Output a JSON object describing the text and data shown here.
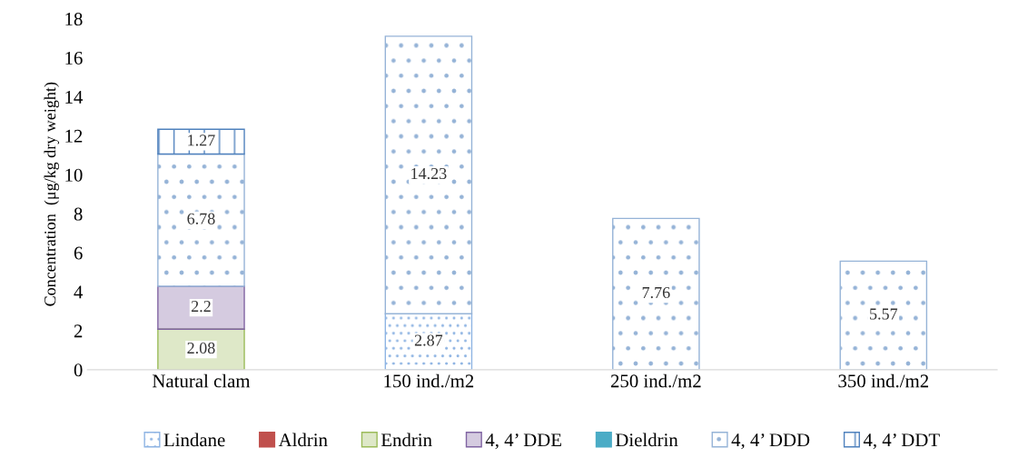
{
  "chart_data": {
    "type": "bar",
    "stacked": true,
    "ylabel": "Concentration  (μg/kg dry weight)",
    "categories": [
      "Natural clam",
      "150 ind./m2",
      "250 ind./m2",
      "350 ind./m2"
    ],
    "series": [
      {
        "name": "Lindane",
        "color": "#8eb4e3",
        "values": [
          null,
          2.87,
          null,
          null
        ]
      },
      {
        "name": "Aldrin",
        "color": "#c0504d",
        "values": [
          null,
          null,
          null,
          null
        ]
      },
      {
        "name": "Endrin",
        "color": "#9bbb59",
        "values": [
          2.08,
          null,
          null,
          null
        ]
      },
      {
        "name": "4, 4’ DDE",
        "color": "#8064a2",
        "values": [
          2.2,
          null,
          null,
          null
        ]
      },
      {
        "name": "Dieldrin",
        "color": "#4bacc6",
        "values": [
          null,
          null,
          null,
          null
        ]
      },
      {
        "name": "4, 4’ DDD",
        "color": "#95b3d7",
        "values": [
          6.78,
          14.23,
          7.76,
          5.57
        ]
      },
      {
        "name": "4, 4’ DDT",
        "color": "#4f81bd",
        "values": [
          1.27,
          null,
          null,
          null
        ]
      }
    ],
    "ylim": [
      0,
      18
    ],
    "yticks": [
      0,
      2,
      4,
      6,
      8,
      10,
      12,
      14,
      16,
      18
    ],
    "data_labels": true,
    "legend": "bottom",
    "grid": false
  }
}
